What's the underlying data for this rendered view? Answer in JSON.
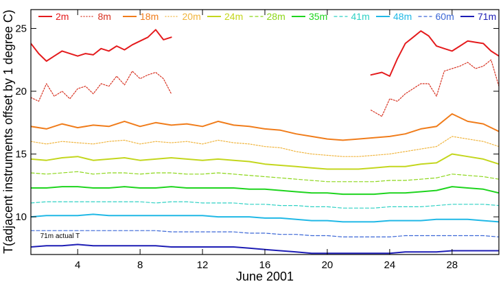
{
  "chart_data": {
    "type": "line",
    "xlabel": "June 2001",
    "ylabel": "T(adjacent instruments offset by 1 degree C)",
    "xlim": [
      1,
      31
    ],
    "ylim": [
      7,
      26.5
    ],
    "xticks": [
      4,
      8,
      12,
      16,
      20,
      24,
      28
    ],
    "yticks": [
      10,
      15,
      20,
      25
    ],
    "annotation": {
      "text": "71m actual T",
      "x": 1.6,
      "y": 8.3
    },
    "legend_position": "top",
    "series": [
      {
        "name": "2m",
        "color": "#e41a1c",
        "dash": "solid",
        "width": 2.0,
        "segments": [
          {
            "x": [
              1,
              1.5,
              2,
              2.5,
              3,
              3.5,
              4,
              4.5,
              5,
              5.5,
              6,
              6.5,
              7,
              7.5,
              8,
              8.5,
              9,
              9.5,
              10
            ],
            "y": [
              23.8,
              23.0,
              22.4,
              22.8,
              23.2,
              23.0,
              22.8,
              23.0,
              22.9,
              23.4,
              23.2,
              23.6,
              23.3,
              23.7,
              24.0,
              24.3,
              24.9,
              24.1,
              24.3
            ]
          },
          {
            "x": [
              22.8,
              23.5,
              24,
              24.5,
              25,
              25.5,
              26,
              26.5,
              27,
              27.5,
              28,
              28.5,
              29,
              29.5,
              30,
              30.5,
              31
            ],
            "y": [
              21.3,
              21.5,
              21.2,
              22.6,
              23.8,
              24.3,
              24.8,
              24.4,
              23.6,
              23.4,
              23.2,
              23.6,
              24.0,
              23.9,
              23.8,
              23.2,
              22.8
            ]
          }
        ]
      },
      {
        "name": "8m",
        "color": "#d7301f",
        "dash": "dotted",
        "width": 1.2,
        "segments": [
          {
            "x": [
              1,
              1.5,
              2,
              2.5,
              3,
              3.5,
              4,
              4.5,
              5,
              5.5,
              6,
              6.5,
              7,
              7.5,
              8,
              8.5,
              9,
              9.5,
              10
            ],
            "y": [
              19.5,
              19.2,
              20.6,
              19.6,
              20.0,
              19.4,
              20.2,
              20.4,
              19.8,
              20.6,
              20.4,
              21.2,
              20.5,
              21.6,
              21.0,
              21.3,
              21.5,
              21.0,
              19.8
            ]
          },
          {
            "x": [
              22.8,
              23.5,
              24,
              24.5,
              25,
              25.5,
              26,
              26.5,
              27,
              27.5,
              28,
              28.5,
              29,
              29.5,
              30,
              30.5,
              31
            ],
            "y": [
              18.5,
              18.0,
              19.4,
              19.2,
              19.8,
              20.2,
              20.6,
              20.6,
              19.6,
              21.6,
              21.8,
              22.0,
              22.3,
              21.8,
              22.0,
              22.5,
              20.4
            ]
          }
        ]
      },
      {
        "name": "18m",
        "color": "#f07c1a",
        "dash": "solid",
        "width": 2.0,
        "segments": [
          {
            "x": [
              1,
              2,
              3,
              4,
              5,
              6,
              7,
              8,
              9,
              10,
              11,
              12,
              13,
              14,
              15,
              16,
              17,
              18,
              19,
              20,
              21,
              22,
              23,
              24,
              25,
              26,
              27,
              28,
              29,
              30,
              31
            ],
            "y": [
              17.2,
              17.0,
              17.4,
              17.1,
              17.3,
              17.2,
              17.6,
              17.2,
              17.5,
              17.3,
              17.4,
              17.2,
              17.6,
              17.3,
              17.2,
              17.0,
              16.9,
              16.6,
              16.4,
              16.2,
              16.1,
              16.2,
              16.3,
              16.4,
              16.6,
              17.0,
              17.2,
              18.2,
              17.6,
              17.4,
              16.8
            ]
          }
        ]
      },
      {
        "name": "20m",
        "color": "#f0b43c",
        "dash": "dotted",
        "width": 1.2,
        "segments": [
          {
            "x": [
              1,
              2,
              3,
              4,
              5,
              6,
              7,
              8,
              9,
              10,
              11,
              12,
              13,
              14,
              15,
              16,
              17,
              18,
              19,
              20,
              21,
              22,
              23,
              24,
              25,
              26,
              27,
              28,
              29,
              30,
              31
            ],
            "y": [
              16.0,
              15.8,
              16.0,
              15.9,
              15.8,
              16.0,
              16.1,
              15.8,
              16.0,
              15.9,
              16.0,
              15.8,
              16.1,
              15.9,
              15.8,
              15.6,
              15.5,
              15.2,
              15.0,
              14.9,
              14.8,
              14.8,
              14.9,
              15.0,
              15.2,
              15.4,
              15.6,
              16.4,
              16.2,
              16.0,
              15.6
            ]
          }
        ]
      },
      {
        "name": "24m",
        "color": "#c3d61c",
        "dash": "solid",
        "width": 2.0,
        "segments": [
          {
            "x": [
              1,
              2,
              3,
              4,
              5,
              6,
              7,
              8,
              9,
              10,
              11,
              12,
              13,
              14,
              15,
              16,
              17,
              18,
              19,
              20,
              21,
              22,
              23,
              24,
              25,
              26,
              27,
              28,
              29,
              30,
              31
            ],
            "y": [
              14.6,
              14.5,
              14.7,
              14.8,
              14.5,
              14.6,
              14.7,
              14.5,
              14.6,
              14.7,
              14.6,
              14.5,
              14.6,
              14.5,
              14.4,
              14.2,
              14.1,
              14.0,
              13.9,
              13.8,
              13.8,
              13.8,
              13.9,
              14.0,
              14.0,
              14.2,
              14.3,
              15.0,
              14.8,
              14.6,
              14.2
            ]
          }
        ]
      },
      {
        "name": "28m",
        "color": "#8bd617",
        "dash": "dashed",
        "width": 1.2,
        "segments": [
          {
            "x": [
              1,
              2,
              3,
              4,
              5,
              6,
              7,
              8,
              9,
              10,
              11,
              12,
              13,
              14,
              15,
              16,
              17,
              18,
              19,
              20,
              21,
              22,
              23,
              24,
              25,
              26,
              27,
              28,
              29,
              30,
              31
            ],
            "y": [
              13.5,
              13.4,
              13.5,
              13.6,
              13.4,
              13.5,
              13.5,
              13.4,
              13.5,
              13.5,
              13.4,
              13.4,
              13.5,
              13.4,
              13.3,
              13.2,
              13.1,
              13.0,
              12.9,
              12.8,
              12.8,
              12.8,
              12.8,
              12.9,
              12.9,
              13.0,
              13.1,
              13.4,
              13.3,
              13.2,
              13.0
            ]
          }
        ]
      },
      {
        "name": "35m",
        "color": "#1dd41d",
        "dash": "solid",
        "width": 2.0,
        "segments": [
          {
            "x": [
              1,
              2,
              3,
              4,
              5,
              6,
              7,
              8,
              9,
              10,
              11,
              12,
              13,
              14,
              15,
              16,
              17,
              18,
              19,
              20,
              21,
              22,
              23,
              24,
              25,
              26,
              27,
              28,
              29,
              30,
              31
            ],
            "y": [
              12.3,
              12.3,
              12.4,
              12.4,
              12.3,
              12.3,
              12.4,
              12.3,
              12.3,
              12.4,
              12.3,
              12.3,
              12.3,
              12.3,
              12.2,
              12.2,
              12.1,
              12.0,
              11.9,
              11.9,
              11.8,
              11.8,
              11.8,
              11.9,
              11.9,
              12.0,
              12.1,
              12.4,
              12.3,
              12.2,
              11.9
            ]
          }
        ]
      },
      {
        "name": "41m",
        "color": "#2ed1c4",
        "dash": "dashed",
        "width": 1.2,
        "segments": [
          {
            "x": [
              1,
              2,
              3,
              4,
              5,
              6,
              7,
              8,
              9,
              10,
              11,
              12,
              13,
              14,
              15,
              16,
              17,
              18,
              19,
              20,
              21,
              22,
              23,
              24,
              25,
              26,
              27,
              28,
              29,
              30,
              31
            ],
            "y": [
              11.1,
              11.2,
              11.2,
              11.2,
              11.2,
              11.2,
              11.2,
              11.2,
              11.1,
              11.2,
              11.2,
              11.1,
              11.1,
              11.1,
              11.0,
              11.0,
              10.9,
              10.9,
              10.8,
              10.8,
              10.7,
              10.7,
              10.7,
              10.8,
              10.8,
              10.8,
              10.9,
              11.0,
              11.0,
              11.0,
              10.9
            ]
          }
        ]
      },
      {
        "name": "48m",
        "color": "#1fb8e6",
        "dash": "solid",
        "width": 2.0,
        "segments": [
          {
            "x": [
              1,
              2,
              3,
              4,
              5,
              6,
              7,
              8,
              9,
              10,
              11,
              12,
              13,
              14,
              15,
              16,
              17,
              18,
              19,
              20,
              21,
              22,
              23,
              24,
              25,
              26,
              27,
              28,
              29,
              30,
              31
            ],
            "y": [
              10.0,
              10.1,
              10.1,
              10.1,
              10.2,
              10.1,
              10.1,
              10.1,
              10.1,
              10.1,
              10.1,
              10.1,
              10.0,
              10.0,
              10.0,
              9.9,
              9.9,
              9.8,
              9.7,
              9.7,
              9.6,
              9.6,
              9.6,
              9.7,
              9.7,
              9.7,
              9.8,
              9.8,
              9.8,
              9.7,
              9.6
            ]
          }
        ]
      },
      {
        "name": "60m",
        "color": "#3a66d6",
        "dash": "dashed",
        "width": 1.2,
        "segments": [
          {
            "x": [
              1,
              2,
              3,
              4,
              5,
              6,
              7,
              8,
              9,
              10,
              11,
              12,
              13,
              14,
              15,
              16,
              17,
              18,
              19,
              20,
              21,
              22,
              23,
              24,
              25,
              26,
              27,
              28,
              29,
              30,
              31
            ],
            "y": [
              8.9,
              8.9,
              8.9,
              8.9,
              8.9,
              8.9,
              8.9,
              8.9,
              8.9,
              8.8,
              8.8,
              8.8,
              8.8,
              8.8,
              8.7,
              8.7,
              8.6,
              8.6,
              8.5,
              8.5,
              8.4,
              8.4,
              8.4,
              8.4,
              8.5,
              8.5,
              8.5,
              8.5,
              8.5,
              8.5,
              8.4
            ]
          }
        ]
      },
      {
        "name": "71m",
        "color": "#1c1cb4",
        "dash": "solid",
        "width": 2.0,
        "segments": [
          {
            "x": [
              1,
              2,
              3,
              4,
              5,
              6,
              7,
              8,
              9,
              10,
              11,
              12,
              13,
              14,
              15,
              16,
              17,
              18,
              19,
              20,
              21,
              22,
              23,
              24,
              25,
              26,
              27,
              28,
              29,
              30,
              31
            ],
            "y": [
              7.6,
              7.7,
              7.7,
              7.8,
              7.7,
              7.7,
              7.7,
              7.7,
              7.7,
              7.6,
              7.6,
              7.6,
              7.6,
              7.6,
              7.5,
              7.4,
              7.3,
              7.2,
              7.1,
              7.1,
              7.1,
              7.1,
              7.1,
              7.1,
              7.2,
              7.2,
              7.2,
              7.3,
              7.3,
              7.3,
              7.3
            ]
          }
        ]
      }
    ]
  }
}
